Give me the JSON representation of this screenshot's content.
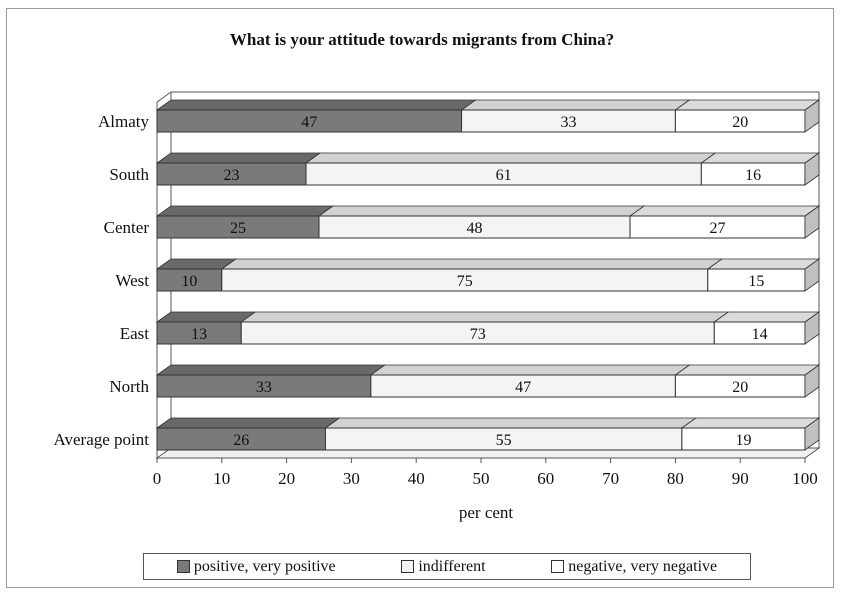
{
  "chart_data": {
    "type": "bar",
    "orientation": "horizontal",
    "stacked": true,
    "percent_stacked": true,
    "title": "What is your attitude towards migrants from China?",
    "xlabel": "per cent",
    "ylabel": "",
    "xlim": [
      0,
      100
    ],
    "x_ticks": [
      "0",
      "10",
      "20",
      "30",
      "40",
      "50",
      "60",
      "70",
      "80",
      "90",
      "100"
    ],
    "grid": false,
    "three_d": true,
    "legend_position": "bottom",
    "categories": [
      "Almaty",
      "South",
      "Center",
      "West",
      "East",
      "North",
      "Average point"
    ],
    "series": [
      {
        "name": "positive, very positive",
        "color": "#7a7a7a",
        "values": [
          47,
          23,
          25,
          10,
          13,
          33,
          26
        ]
      },
      {
        "name": "indifferent",
        "color": "#f4f4f4",
        "values": [
          33,
          61,
          48,
          75,
          73,
          47,
          55
        ]
      },
      {
        "name": "negative, very negative",
        "color": "#ffffff",
        "values": [
          20,
          16,
          27,
          15,
          14,
          20,
          19
        ]
      }
    ]
  }
}
